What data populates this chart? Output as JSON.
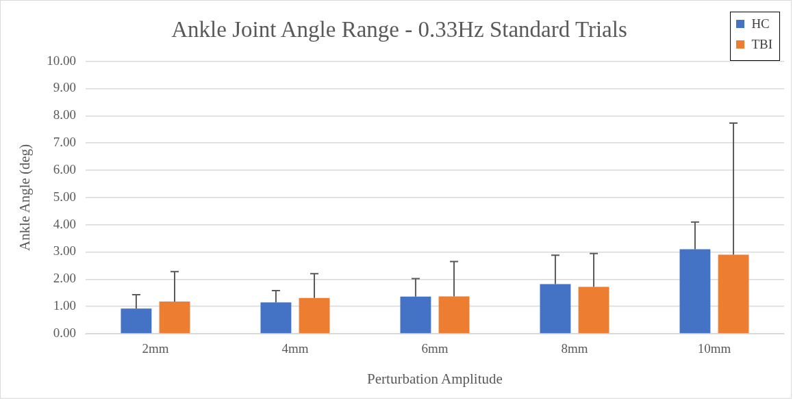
{
  "chart_data": {
    "type": "bar",
    "title": "Ankle Joint Angle Range - 0.33Hz Standard Trials",
    "xlabel": "Perturbation Amplitude",
    "ylabel": "Ankle Angle (deg)",
    "categories": [
      "2mm",
      "4mm",
      "6mm",
      "8mm",
      "10mm"
    ],
    "series": [
      {
        "name": "HC",
        "color": "#4472c4",
        "values": [
          0.92,
          1.15,
          1.36,
          1.82,
          3.1
        ],
        "errors": [
          [
            0.92,
            1.43
          ],
          [
            1.15,
            1.58
          ],
          [
            1.36,
            2.02
          ],
          [
            1.82,
            2.88
          ],
          [
            3.1,
            4.1
          ]
        ]
      },
      {
        "name": "TBI",
        "color": "#ed7d31",
        "values": [
          1.18,
          1.31,
          1.37,
          1.72,
          2.9
        ],
        "errors": [
          [
            1.18,
            2.28
          ],
          [
            1.31,
            2.2
          ],
          [
            1.37,
            2.65
          ],
          [
            1.72,
            2.94
          ],
          [
            2.9,
            7.73
          ]
        ]
      }
    ],
    "ylim": [
      0,
      10
    ],
    "yticks": [
      {
        "value": 0,
        "label": "0.00"
      },
      {
        "value": 1,
        "label": "1.00"
      },
      {
        "value": 2,
        "label": "2.00"
      },
      {
        "value": 3,
        "label": "3.00"
      },
      {
        "value": 4,
        "label": "4.00"
      },
      {
        "value": 5,
        "label": "5.00"
      },
      {
        "value": 6,
        "label": "6.00"
      },
      {
        "value": 7,
        "label": "7.00"
      },
      {
        "value": 8,
        "label": "8.00"
      },
      {
        "value": 9,
        "label": "9.00"
      },
      {
        "value": 10,
        "label": "10.00"
      }
    ],
    "grid": "y",
    "legend": "top right"
  }
}
